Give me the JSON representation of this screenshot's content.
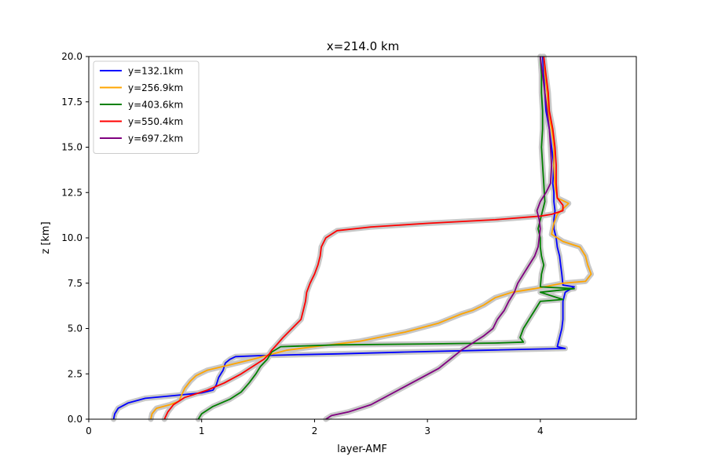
{
  "chart_data": {
    "type": "line",
    "title": "x=214.0 km",
    "xlabel": "layer-AMF",
    "ylabel": "z [km]",
    "xlim": [
      0,
      4.85
    ],
    "ylim": [
      0,
      20
    ],
    "xticks": [
      0,
      1,
      2,
      3,
      4
    ],
    "xtick_labels": [
      "0",
      "1",
      "2",
      "3",
      "4"
    ],
    "yticks": [
      0,
      2.5,
      5,
      7.5,
      10,
      12.5,
      15,
      17.5,
      20
    ],
    "ytick_labels": [
      "0.0",
      "2.5",
      "5.0",
      "7.5",
      "10.0",
      "12.5",
      "15.0",
      "17.5",
      "20.0"
    ],
    "grid": false,
    "legend_position": "top-left",
    "uncertainty_band_color": "#c8c8c8",
    "series": [
      {
        "name": "y=132.1km",
        "color": "#0000ff",
        "points": [
          [
            0.22,
            0
          ],
          [
            0.23,
            0.3
          ],
          [
            0.26,
            0.6
          ],
          [
            0.35,
            0.9
          ],
          [
            0.5,
            1.15
          ],
          [
            0.75,
            1.3
          ],
          [
            1.0,
            1.45
          ],
          [
            1.1,
            1.6
          ],
          [
            1.13,
            1.9
          ],
          [
            1.15,
            2.3
          ],
          [
            1.19,
            2.7
          ],
          [
            1.21,
            3.1
          ],
          [
            1.25,
            3.3
          ],
          [
            1.3,
            3.45
          ],
          [
            1.5,
            3.5
          ],
          [
            1.8,
            3.55
          ],
          [
            2.2,
            3.6
          ],
          [
            2.8,
            3.7
          ],
          [
            3.5,
            3.8
          ],
          [
            4.22,
            3.9
          ],
          [
            4.15,
            4.0
          ],
          [
            4.17,
            4.5
          ],
          [
            4.19,
            5.0
          ],
          [
            4.2,
            5.5
          ],
          [
            4.2,
            6.0
          ],
          [
            4.2,
            6.5
          ],
          [
            4.22,
            7.0
          ],
          [
            4.3,
            7.3
          ],
          [
            4.2,
            7.4
          ],
          [
            4.19,
            8.0
          ],
          [
            4.18,
            8.5
          ],
          [
            4.17,
            9.0
          ],
          [
            4.15,
            9.5
          ],
          [
            4.14,
            10.0
          ],
          [
            4.12,
            10.5
          ],
          [
            4.12,
            11.0
          ],
          [
            4.13,
            11.5
          ],
          [
            4.12,
            12.0
          ],
          [
            4.12,
            12.5
          ],
          [
            4.11,
            13.0
          ],
          [
            4.12,
            14.0
          ],
          [
            4.1,
            15.0
          ],
          [
            4.08,
            16.0
          ],
          [
            4.05,
            17.0
          ],
          [
            4.04,
            18.0
          ],
          [
            4.03,
            19.0
          ],
          [
            4.02,
            20.0
          ]
        ]
      },
      {
        "name": "y=256.9km",
        "color": "#ffa500",
        "points": [
          [
            0.55,
            0
          ],
          [
            0.56,
            0.3
          ],
          [
            0.6,
            0.6
          ],
          [
            0.72,
            0.8
          ],
          [
            0.8,
            1.0
          ],
          [
            0.82,
            1.3
          ],
          [
            0.85,
            1.7
          ],
          [
            0.9,
            2.1
          ],
          [
            0.95,
            2.4
          ],
          [
            1.05,
            2.7
          ],
          [
            1.25,
            3.0
          ],
          [
            1.45,
            3.3
          ],
          [
            1.6,
            3.55
          ],
          [
            1.75,
            3.8
          ],
          [
            2.0,
            4.0
          ],
          [
            2.4,
            4.3
          ],
          [
            2.8,
            4.8
          ],
          [
            3.1,
            5.3
          ],
          [
            3.3,
            5.8
          ],
          [
            3.4,
            6.0
          ],
          [
            3.5,
            6.3
          ],
          [
            3.6,
            6.7
          ],
          [
            3.75,
            7.0
          ],
          [
            3.95,
            7.2
          ],
          [
            4.2,
            7.5
          ],
          [
            4.4,
            7.6
          ],
          [
            4.45,
            8.0
          ],
          [
            4.42,
            8.5
          ],
          [
            4.4,
            9.0
          ],
          [
            4.35,
            9.5
          ],
          [
            4.2,
            9.8
          ],
          [
            4.1,
            10.2
          ],
          [
            4.12,
            10.8
          ],
          [
            4.15,
            11.3
          ],
          [
            4.25,
            11.9
          ],
          [
            4.15,
            12.2
          ],
          [
            4.13,
            12.8
          ],
          [
            4.12,
            14.0
          ],
          [
            4.12,
            15.0
          ],
          [
            4.1,
            16.0
          ],
          [
            4.07,
            17.0
          ],
          [
            4.06,
            18.0
          ],
          [
            4.04,
            19.0
          ],
          [
            4.03,
            20.0
          ]
        ]
      },
      {
        "name": "y=403.6km",
        "color": "#008000",
        "points": [
          [
            0.97,
            0
          ],
          [
            1.0,
            0.3
          ],
          [
            1.1,
            0.7
          ],
          [
            1.25,
            1.1
          ],
          [
            1.35,
            1.5
          ],
          [
            1.42,
            2.0
          ],
          [
            1.48,
            2.5
          ],
          [
            1.52,
            2.9
          ],
          [
            1.58,
            3.3
          ],
          [
            1.62,
            3.7
          ],
          [
            1.7,
            4.0
          ],
          [
            2.2,
            4.1
          ],
          [
            3.0,
            4.15
          ],
          [
            3.6,
            4.2
          ],
          [
            3.85,
            4.25
          ],
          [
            3.82,
            4.5
          ],
          [
            3.85,
            5.0
          ],
          [
            3.9,
            5.5
          ],
          [
            3.95,
            6.0
          ],
          [
            4.0,
            6.5
          ],
          [
            4.2,
            6.6
          ],
          [
            4.0,
            7.0
          ],
          [
            4.3,
            7.2
          ],
          [
            4.0,
            7.3
          ],
          [
            4.01,
            8.0
          ],
          [
            4.03,
            8.5
          ],
          [
            4.01,
            9.0
          ],
          [
            4.0,
            9.5
          ],
          [
            4.0,
            10.0
          ],
          [
            3.98,
            10.5
          ],
          [
            4.0,
            11.0
          ],
          [
            4.02,
            11.5
          ],
          [
            4.04,
            12.0
          ],
          [
            4.03,
            13.0
          ],
          [
            4.02,
            14.0
          ],
          [
            4.01,
            15.0
          ],
          [
            4.02,
            16.0
          ],
          [
            4.02,
            17.0
          ],
          [
            4.01,
            18.0
          ],
          [
            4.01,
            19.0
          ],
          [
            4.0,
            20.0
          ]
        ]
      },
      {
        "name": "y=550.4km",
        "color": "#ff0000",
        "points": [
          [
            0.67,
            0
          ],
          [
            0.7,
            0.4
          ],
          [
            0.75,
            0.8
          ],
          [
            0.85,
            1.2
          ],
          [
            1.05,
            1.6
          ],
          [
            1.2,
            2.0
          ],
          [
            1.35,
            2.5
          ],
          [
            1.45,
            2.9
          ],
          [
            1.55,
            3.3
          ],
          [
            1.6,
            3.6
          ],
          [
            1.62,
            3.8
          ],
          [
            1.65,
            4.0
          ],
          [
            1.72,
            4.5
          ],
          [
            1.8,
            5.0
          ],
          [
            1.88,
            5.5
          ],
          [
            1.9,
            6.0
          ],
          [
            1.92,
            6.5
          ],
          [
            1.93,
            7.0
          ],
          [
            1.96,
            7.5
          ],
          [
            2.0,
            8.0
          ],
          [
            2.03,
            8.5
          ],
          [
            2.05,
            9.0
          ],
          [
            2.06,
            9.5
          ],
          [
            2.1,
            10.0
          ],
          [
            2.2,
            10.4
          ],
          [
            2.5,
            10.6
          ],
          [
            3.0,
            10.8
          ],
          [
            3.6,
            11.0
          ],
          [
            4.0,
            11.2
          ],
          [
            4.1,
            11.3
          ],
          [
            4.2,
            11.5
          ],
          [
            4.2,
            11.8
          ],
          [
            4.15,
            12.2
          ],
          [
            4.14,
            13.0
          ],
          [
            4.14,
            14.0
          ],
          [
            4.13,
            15.0
          ],
          [
            4.11,
            16.0
          ],
          [
            4.08,
            17.0
          ],
          [
            4.07,
            18.0
          ],
          [
            4.05,
            19.0
          ],
          [
            4.03,
            20.0
          ]
        ]
      },
      {
        "name": "y=697.2km",
        "color": "#800080",
        "points": [
          [
            2.1,
            0
          ],
          [
            2.15,
            0.2
          ],
          [
            2.3,
            0.4
          ],
          [
            2.5,
            0.8
          ],
          [
            2.65,
            1.3
          ],
          [
            2.8,
            1.8
          ],
          [
            2.95,
            2.3
          ],
          [
            3.1,
            2.8
          ],
          [
            3.2,
            3.3
          ],
          [
            3.3,
            3.8
          ],
          [
            3.4,
            4.2
          ],
          [
            3.5,
            4.6
          ],
          [
            3.58,
            5.0
          ],
          [
            3.62,
            5.5
          ],
          [
            3.68,
            6.0
          ],
          [
            3.72,
            6.5
          ],
          [
            3.77,
            7.0
          ],
          [
            3.8,
            7.5
          ],
          [
            3.85,
            8.0
          ],
          [
            3.9,
            8.5
          ],
          [
            3.95,
            9.0
          ],
          [
            3.98,
            9.5
          ],
          [
            3.99,
            10.0
          ],
          [
            4.0,
            10.5
          ],
          [
            3.99,
            11.0
          ],
          [
            3.97,
            11.5
          ],
          [
            4.0,
            12.0
          ],
          [
            4.05,
            12.5
          ],
          [
            4.09,
            13.0
          ],
          [
            4.1,
            14.0
          ],
          [
            4.09,
            15.0
          ],
          [
            4.08,
            16.0
          ],
          [
            4.06,
            17.0
          ],
          [
            4.04,
            18.0
          ],
          [
            4.02,
            19.0
          ],
          [
            4.0,
            20.0
          ]
        ]
      }
    ]
  }
}
